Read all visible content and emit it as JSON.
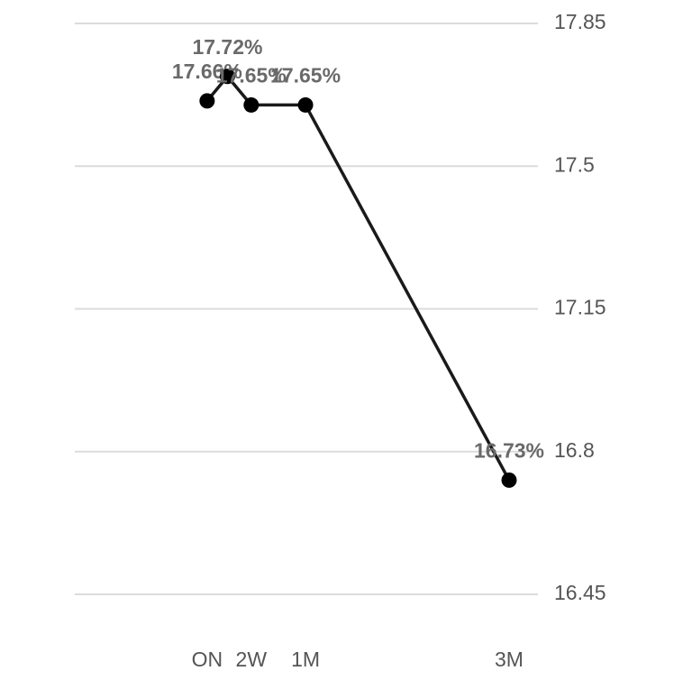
{
  "chart_data": {
    "type": "line",
    "x": [
      1,
      7,
      14,
      30,
      90
    ],
    "series": [
      {
        "color": "#1a1a1a",
        "values": [
          17.66,
          17.72,
          17.65,
          17.65,
          16.73
        ],
        "value_labels": [
          "17.66%",
          "17.72%",
          "17.65%",
          "17.65%",
          "16.73%"
        ]
      }
    ],
    "xlim": [
      -38,
      98.5
    ],
    "xticks": [
      {
        "value": 1,
        "label": "ON"
      },
      {
        "value": 14,
        "label": "2W"
      },
      {
        "value": 30,
        "label": "1M"
      },
      {
        "value": 90,
        "label": "3M"
      }
    ],
    "ylim": [
      16.45,
      17.85
    ],
    "yticks": [
      17.85,
      17.5,
      17.15,
      16.8,
      16.45
    ],
    "grid": true
  }
}
